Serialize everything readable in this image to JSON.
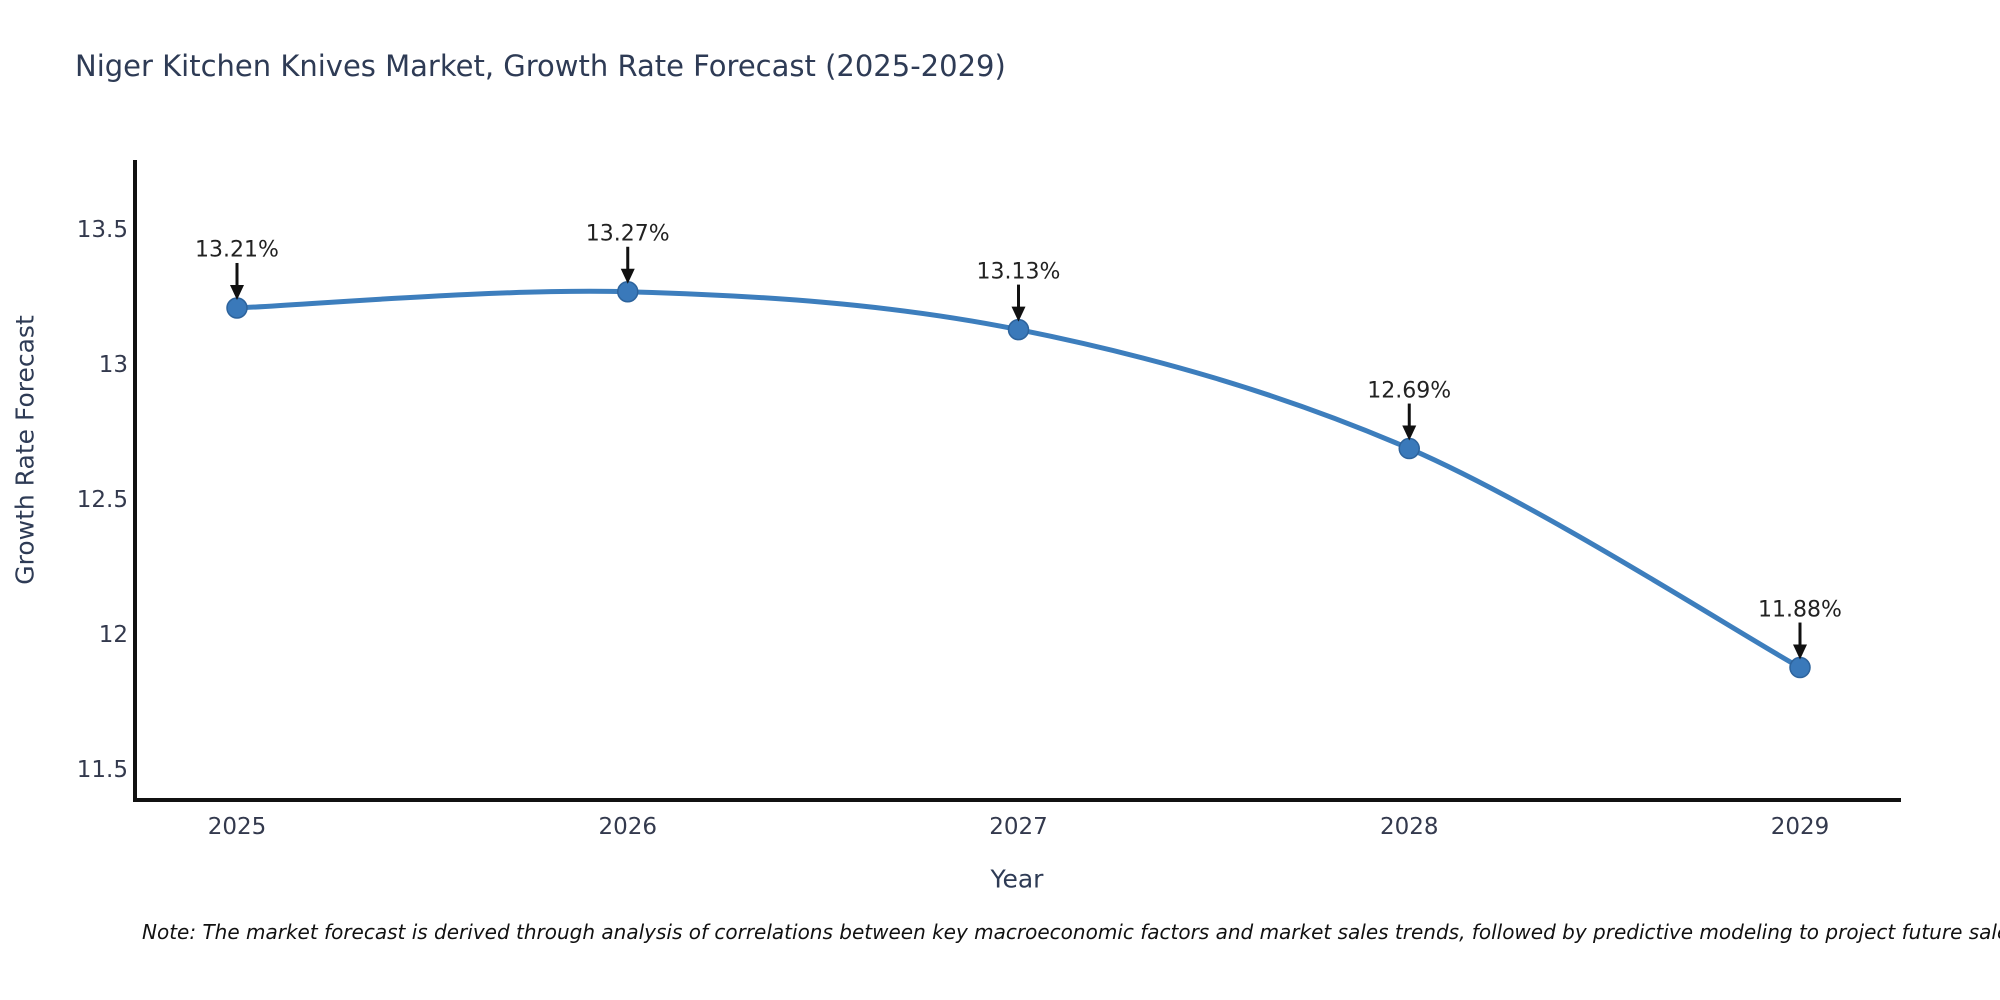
{
  "chart": {
    "title": "Niger Kitchen Knives Market, Growth Rate Forecast (2025-2029)",
    "xlabel": "Year",
    "ylabel": "Growth Rate Forecast"
  },
  "note": "Note: The market forecast is derived through analysis of correlations between key macroeconomic factors and market sales trends, followed by predictive modeling to project future sales.",
  "chart_data": {
    "type": "line",
    "title": "Niger Kitchen Knives Market, Growth Rate Forecast (2025-2029)",
    "xlabel": "Year",
    "ylabel": "Growth Rate Forecast",
    "x": [
      "2025",
      "2026",
      "2027",
      "2028",
      "2029"
    ],
    "series": [
      {
        "name": "Growth Rate Forecast",
        "values": [
          13.21,
          13.27,
          13.13,
          12.69,
          11.88
        ]
      }
    ],
    "annotations": [
      "13.21%",
      "13.27%",
      "13.13%",
      "12.69%",
      "11.88%"
    ],
    "ytick_labels": [
      "13.5",
      "13",
      "12.5",
      "12",
      "11.5"
    ],
    "yticks": [
      13.5,
      13.0,
      12.5,
      12.0,
      11.5
    ],
    "ylim": [
      11.39,
      13.75
    ],
    "grid": false,
    "legend": "none",
    "line_shape": "spline",
    "colors": {
      "line": "#3d7ebd",
      "marker": "#3a79ba",
      "marker_edge": "#2d639c",
      "axis": "#111111",
      "arrow": "#111111"
    }
  }
}
